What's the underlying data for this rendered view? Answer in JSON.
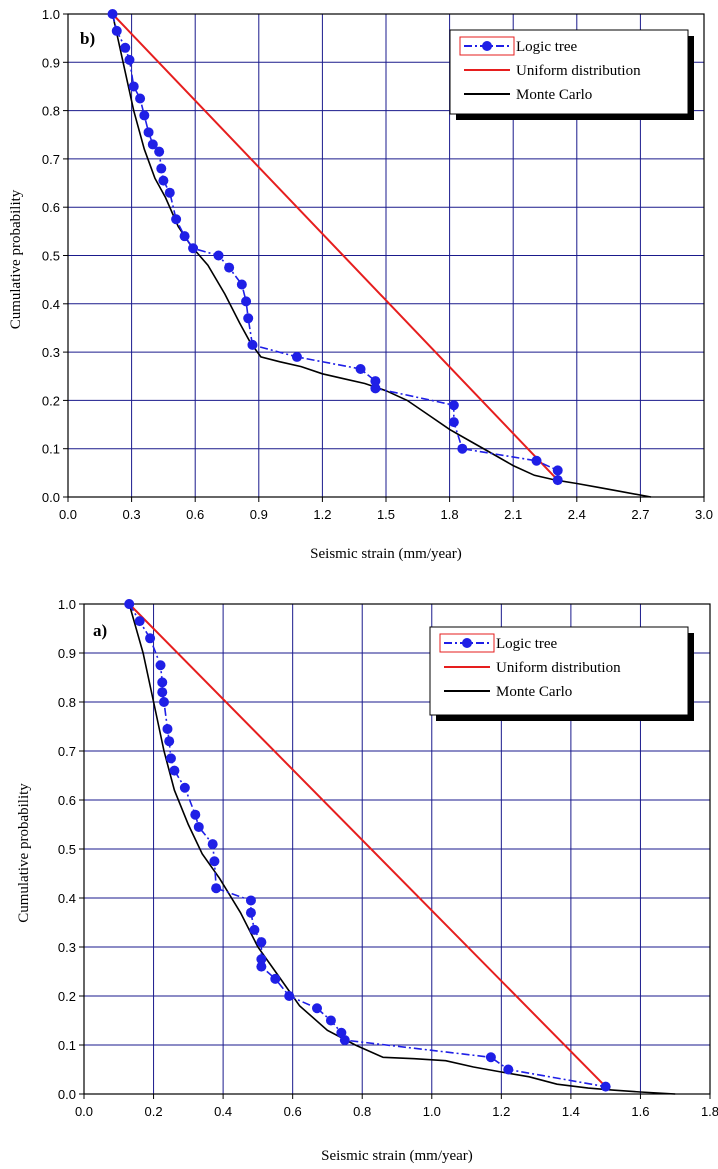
{
  "colors": {
    "logic": "#1f1fe6",
    "uniform": "#e61e1e",
    "monte": "#000000",
    "grid": "#1a1a8c"
  },
  "chart_data": [
    {
      "type": "line",
      "panel_label": "b)",
      "xlabel": "Seismic strain (mm/year)",
      "ylabel": "Cumulative probability",
      "xlim": [
        0,
        3.0
      ],
      "ylim": [
        0,
        1.0
      ],
      "xticks": [
        "0.0",
        "0.3",
        "0.6",
        "0.9",
        "1.2",
        "1.5",
        "1.8",
        "2.1",
        "2.4",
        "2.7",
        "3.0"
      ],
      "yticks": [
        "0.0",
        "0.1",
        "0.2",
        "0.3",
        "0.4",
        "0.5",
        "0.6",
        "0.7",
        "0.8",
        "0.9",
        "1.0"
      ],
      "grid": true,
      "legend_position": "top-right",
      "series": [
        {
          "name": "Logic tree",
          "style": "dash-dot-markers",
          "color": "#1f1fe6",
          "x": [
            0.21,
            0.23,
            0.27,
            0.29,
            0.31,
            0.34,
            0.36,
            0.38,
            0.4,
            0.43,
            0.44,
            0.45,
            0.48,
            0.51,
            0.55,
            0.59,
            0.71,
            0.76,
            0.82,
            0.84,
            0.85,
            0.87,
            1.08,
            1.38,
            1.45,
            1.45,
            1.82,
            1.82,
            1.86,
            2.21,
            2.31,
            2.31
          ],
          "y": [
            1.0,
            0.965,
            0.93,
            0.905,
            0.85,
            0.825,
            0.79,
            0.755,
            0.73,
            0.715,
            0.68,
            0.655,
            0.63,
            0.575,
            0.54,
            0.515,
            0.5,
            0.475,
            0.44,
            0.405,
            0.37,
            0.315,
            0.29,
            0.265,
            0.24,
            0.225,
            0.19,
            0.155,
            0.1,
            0.075,
            0.055,
            0.035
          ]
        },
        {
          "name": "Uniform distribution",
          "style": "solid",
          "color": "#e61e1e",
          "x": [
            0.21,
            2.31
          ],
          "y": [
            1.0,
            0.035
          ]
        },
        {
          "name": "Monte Carlo",
          "style": "solid",
          "color": "#000000",
          "x": [
            0.21,
            0.26,
            0.31,
            0.36,
            0.41,
            0.46,
            0.52,
            0.58,
            0.66,
            0.74,
            0.81,
            0.86,
            0.91,
            1.0,
            1.1,
            1.2,
            1.3,
            1.4,
            1.5,
            1.6,
            1.7,
            1.8,
            1.9,
            2.0,
            2.1,
            2.2,
            2.3,
            2.4,
            2.5,
            2.6,
            2.75
          ],
          "y": [
            1.0,
            0.9,
            0.8,
            0.72,
            0.66,
            0.62,
            0.56,
            0.52,
            0.48,
            0.42,
            0.36,
            0.32,
            0.29,
            0.28,
            0.27,
            0.255,
            0.245,
            0.235,
            0.22,
            0.2,
            0.17,
            0.14,
            0.115,
            0.09,
            0.065,
            0.045,
            0.035,
            0.028,
            0.02,
            0.012,
            0.0
          ]
        }
      ]
    },
    {
      "type": "line",
      "panel_label": "a)",
      "xlabel": "Seismic strain (mm/year)",
      "ylabel": "Cumulative probability",
      "xlim": [
        0,
        1.8
      ],
      "ylim": [
        0,
        1.0
      ],
      "xticks": [
        "0.0",
        "0.2",
        "0.4",
        "0.6",
        "0.8",
        "1.0",
        "1.2",
        "1.4",
        "1.6",
        "1.8"
      ],
      "yticks": [
        "0.0",
        "0.1",
        "0.2",
        "0.3",
        "0.4",
        "0.5",
        "0.6",
        "0.7",
        "0.8",
        "0.9",
        "1.0"
      ],
      "grid": true,
      "legend_position": "top-right",
      "series": [
        {
          "name": "Logic tree",
          "style": "dash-dot-markers",
          "color": "#1f1fe6",
          "x": [
            0.13,
            0.16,
            0.19,
            0.22,
            0.225,
            0.225,
            0.23,
            0.24,
            0.245,
            0.25,
            0.26,
            0.29,
            0.32,
            0.33,
            0.37,
            0.375,
            0.38,
            0.48,
            0.48,
            0.49,
            0.51,
            0.51,
            0.51,
            0.55,
            0.59,
            0.67,
            0.71,
            0.74,
            0.75,
            1.17,
            1.22,
            1.5
          ],
          "y": [
            1.0,
            0.965,
            0.93,
            0.875,
            0.84,
            0.82,
            0.8,
            0.745,
            0.72,
            0.685,
            0.66,
            0.625,
            0.57,
            0.545,
            0.51,
            0.475,
            0.42,
            0.395,
            0.37,
            0.335,
            0.31,
            0.275,
            0.26,
            0.235,
            0.2,
            0.175,
            0.15,
            0.125,
            0.11,
            0.075,
            0.05,
            0.015
          ]
        },
        {
          "name": "Uniform distribution",
          "style": "solid",
          "color": "#e61e1e",
          "x": [
            0.13,
            1.5
          ],
          "y": [
            1.0,
            0.015
          ]
        },
        {
          "name": "Monte Carlo",
          "style": "solid",
          "color": "#000000",
          "x": [
            0.13,
            0.17,
            0.2,
            0.23,
            0.26,
            0.3,
            0.34,
            0.39,
            0.45,
            0.5,
            0.56,
            0.62,
            0.7,
            0.78,
            0.86,
            0.95,
            1.04,
            1.12,
            1.2,
            1.28,
            1.36,
            1.45,
            1.52,
            1.6,
            1.7
          ],
          "y": [
            1.0,
            0.9,
            0.8,
            0.7,
            0.62,
            0.55,
            0.49,
            0.44,
            0.37,
            0.3,
            0.24,
            0.18,
            0.13,
            0.1,
            0.075,
            0.072,
            0.068,
            0.055,
            0.045,
            0.035,
            0.02,
            0.012,
            0.008,
            0.004,
            0.0
          ]
        }
      ]
    }
  ]
}
